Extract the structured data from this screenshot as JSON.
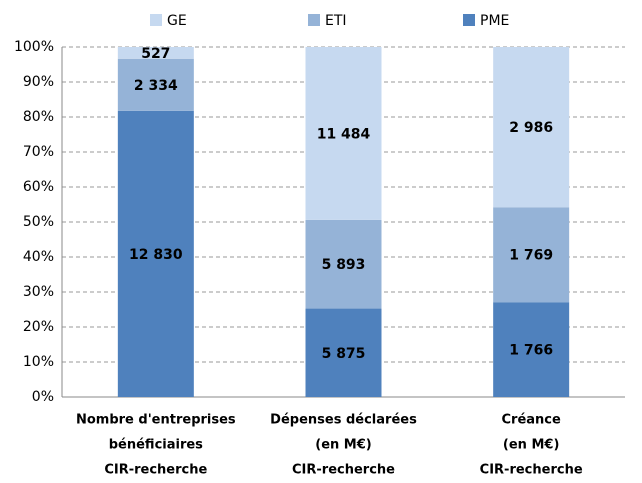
{
  "chart_data": {
    "type": "bar",
    "stack": "percent",
    "categories": [
      [
        "Nombre d'entreprises",
        "bénéficiaires",
        "CIR-recherche"
      ],
      [
        "Dépenses déclarées",
        "(en M€)",
        "CIR-recherche"
      ],
      [
        "Créance",
        "(en M€)",
        "CIR-recherche"
      ]
    ],
    "series": [
      {
        "name": "PME",
        "color": "#4f81bd",
        "values": [
          12830,
          5875,
          1766
        ],
        "value_labels": [
          "12 830",
          "5 875",
          "1 766"
        ]
      },
      {
        "name": "ETI",
        "color": "#95b3d7",
        "values": [
          2334,
          5893,
          1769
        ],
        "value_labels": [
          "2 334",
          "5 893",
          "1 769"
        ]
      },
      {
        "name": "GE",
        "color": "#c6d9f0",
        "values": [
          527,
          11484,
          2986
        ],
        "value_labels": [
          "527",
          "11 484",
          "2 986"
        ]
      }
    ],
    "legend": "top",
    "ylim": [
      0,
      100
    ],
    "yticks": [
      {
        "value": 0,
        "label": "0%"
      },
      {
        "value": 10,
        "label": "10%"
      },
      {
        "value": 20,
        "label": "20%"
      },
      {
        "value": 30,
        "label": "30%"
      },
      {
        "value": 40,
        "label": "40%"
      },
      {
        "value": 50,
        "label": "50%"
      },
      {
        "value": 60,
        "label": "60%"
      },
      {
        "value": 70,
        "label": "70%"
      },
      {
        "value": 80,
        "label": "80%"
      },
      {
        "value": 90,
        "label": "90%"
      },
      {
        "value": 100,
        "label": "100%"
      }
    ],
    "grid": true
  }
}
